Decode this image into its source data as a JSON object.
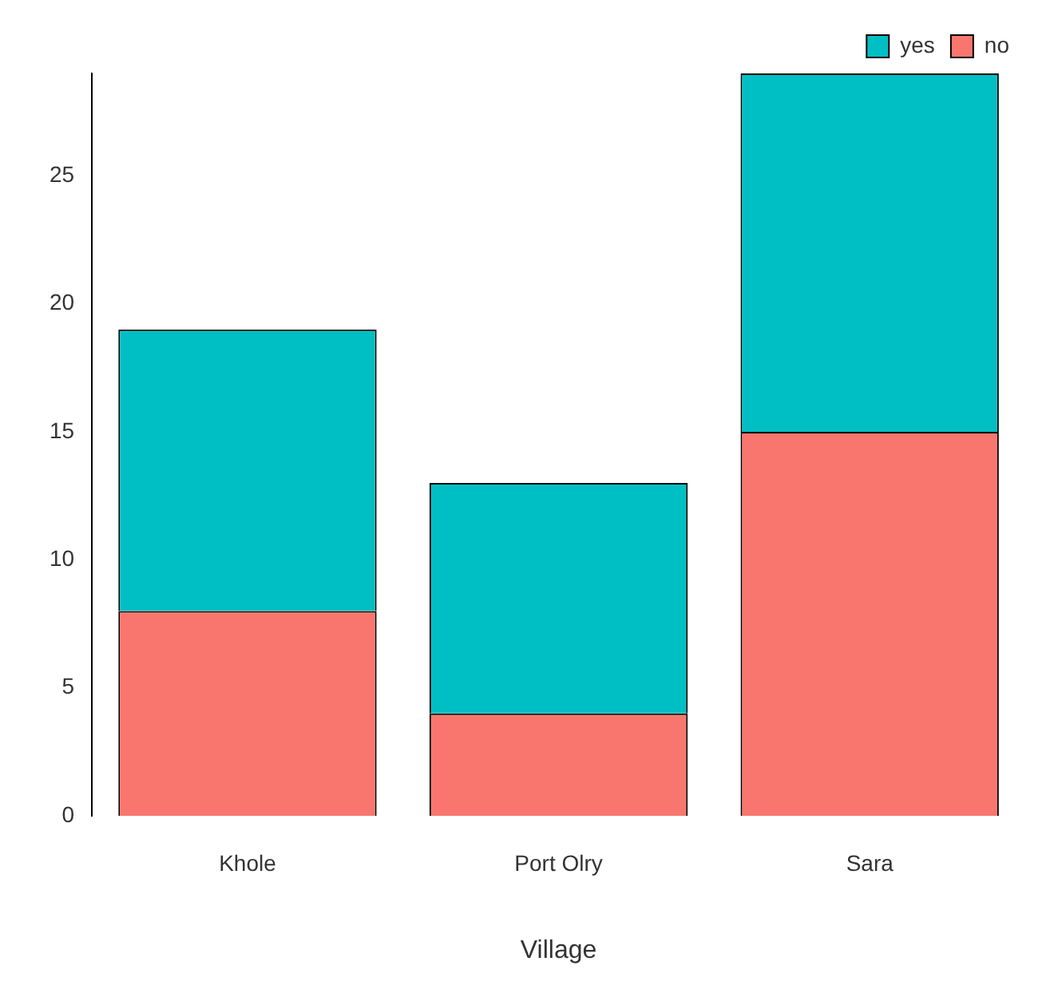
{
  "chart_data": {
    "type": "bar",
    "xlabel": "Village",
    "categories": [
      "Khole",
      "Port Olry",
      "Sara"
    ],
    "stacked": true,
    "series": [
      {
        "name": "no",
        "color": "#f8766d",
        "values": [
          8,
          4,
          15
        ]
      },
      {
        "name": "yes",
        "color": "#00bfc4",
        "values": [
          11,
          9,
          14
        ]
      }
    ],
    "ylim": [
      0,
      29
    ],
    "yticks": [
      0,
      5,
      10,
      15,
      20,
      25
    ],
    "grid": false,
    "legend": "top right"
  }
}
